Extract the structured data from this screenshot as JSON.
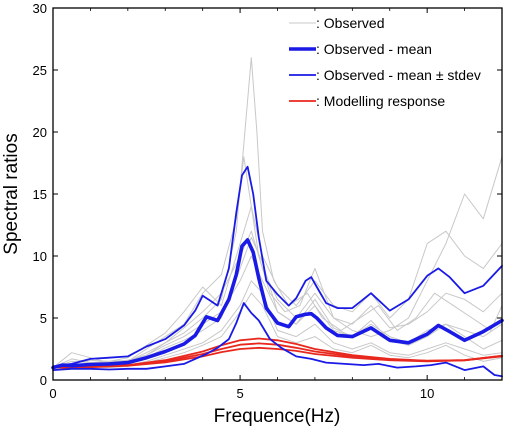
{
  "chart_data": {
    "type": "line",
    "title": "",
    "xlabel": "Frequence(Hz)",
    "ylabel": "Spectral ratios",
    "xlim": [
      0,
      12
    ],
    "ylim": [
      0,
      30
    ],
    "x_ticks": [
      0,
      5,
      10
    ],
    "y_ticks": [
      0,
      5,
      10,
      15,
      20,
      25,
      30
    ],
    "grid": false,
    "legend_position": "top-right",
    "legend": [
      {
        "label": ": Observed",
        "color": "#c8c8c8",
        "style": "thin"
      },
      {
        "label": ": Observed - mean",
        "color": "#1a1ae6",
        "style": "thick"
      },
      {
        "label": ": Observed - mean ± stdev",
        "color": "#1a1ae6",
        "style": "medium"
      },
      {
        "label": ": Modelling response",
        "color": "#e8281e",
        "style": "medium"
      }
    ],
    "series": [
      {
        "name": ": Observed - mean",
        "kind": "mean",
        "color": "#1a1ae6",
        "x": [
          0,
          0.25,
          0.5,
          1,
          1.5,
          2,
          2.5,
          3,
          3.5,
          3.8,
          4.1,
          4.4,
          4.7,
          4.9,
          5.05,
          5.2,
          5.35,
          5.5,
          5.7,
          6,
          6.3,
          6.5,
          6.75,
          6.9,
          7.05,
          7.3,
          7.6,
          8,
          8.5,
          9,
          9.5,
          10,
          10.3,
          10.6,
          11,
          11.5,
          12
        ],
        "y": [
          1,
          1.2,
          1.15,
          1.25,
          1.3,
          1.4,
          1.8,
          2.3,
          2.9,
          3.6,
          5.1,
          4.8,
          6.5,
          8.5,
          10.8,
          11.3,
          10.3,
          8.2,
          5.8,
          4.6,
          4.3,
          5.1,
          5.3,
          5.35,
          5.0,
          4.2,
          3.6,
          3.5,
          4.2,
          3.2,
          3.0,
          3.7,
          4.4,
          3.9,
          3.2,
          3.9,
          4.8
        ]
      },
      {
        "name": ": Observed - mean ± stdev",
        "kind": "upper",
        "color": "#1a1ae6",
        "x": [
          0,
          0.5,
          1,
          1.5,
          2,
          2.5,
          3,
          3.5,
          3.8,
          4.0,
          4.2,
          4.4,
          4.7,
          4.9,
          5.05,
          5.2,
          5.35,
          5.5,
          5.7,
          6,
          6.3,
          6.5,
          6.75,
          6.9,
          7.05,
          7.3,
          7.6,
          8,
          8.5,
          9,
          9.5,
          10,
          10.3,
          10.6,
          11,
          11.5,
          12
        ],
        "y": [
          1.1,
          1.3,
          1.7,
          1.8,
          1.9,
          2.7,
          3.3,
          4.4,
          5.6,
          6.8,
          6.4,
          6.0,
          9.0,
          13.5,
          16.5,
          17.2,
          15.0,
          11.5,
          8.0,
          6.9,
          6.0,
          6.6,
          8.0,
          8.3,
          7.5,
          6.2,
          5.8,
          5.8,
          7.0,
          5.6,
          6.5,
          8.4,
          9.0,
          8.3,
          7.0,
          7.6,
          9.2
        ]
      },
      {
        "name": ": Observed - mean ± stdev",
        "kind": "lower",
        "color": "#1a1ae6",
        "x": [
          0,
          0.5,
          1,
          1.5,
          2,
          2.5,
          3,
          3.5,
          3.8,
          4.1,
          4.4,
          4.7,
          4.9,
          5.1,
          5.3,
          5.5,
          5.8,
          6.1,
          6.5,
          6.9,
          7.3,
          7.8,
          8.3,
          8.7,
          9.2,
          9.7,
          10.1,
          10.5,
          11,
          11.5,
          11.8,
          12
        ],
        "y": [
          0.8,
          0.9,
          0.9,
          0.85,
          0.9,
          0.9,
          1.1,
          1.3,
          1.7,
          2.1,
          2.6,
          3.3,
          4.6,
          6.2,
          5.4,
          4.8,
          3.3,
          2.6,
          1.9,
          1.7,
          1.4,
          1.3,
          1.2,
          1.3,
          1.0,
          1.1,
          1.2,
          1.4,
          0.8,
          1.1,
          0.4,
          0.3
        ]
      },
      {
        "name": ": Observed",
        "kind": "observed",
        "color": "#c8c8c8",
        "x": [
          0,
          0.5,
          1,
          1.5,
          2,
          2.5,
          3,
          3.5,
          4,
          4.5,
          4.9,
          5.1,
          5.3,
          5.45,
          5.6,
          5.9,
          6.3,
          6.8,
          7.2,
          7.7,
          8.2,
          8.7,
          9.2,
          9.7,
          10.2,
          10.7,
          11.2,
          11.7,
          12
        ],
        "y": [
          1,
          1.7,
          1.4,
          1.5,
          1.6,
          2.0,
          3.0,
          3.8,
          5.0,
          6.5,
          12,
          19,
          26,
          20,
          12,
          8,
          6,
          7,
          5,
          4,
          5,
          6,
          4,
          5,
          7,
          6,
          5,
          4,
          6
        ]
      },
      {
        "name": ": Observed",
        "kind": "observed",
        "color": "#c8c8c8",
        "x": [
          0,
          0.5,
          1,
          1.5,
          2,
          2.5,
          3,
          3.5,
          4,
          4.5,
          4.9,
          5.1,
          5.3,
          5.5,
          5.8,
          6.2,
          6.6,
          7.0,
          7.5,
          8,
          8.5,
          9,
          9.5,
          10,
          10.5,
          11,
          11.5,
          12
        ],
        "y": [
          1,
          1.2,
          1.3,
          1.2,
          1.5,
          2.5,
          3.5,
          4.5,
          7.0,
          8.5,
          13,
          18,
          14,
          10,
          7,
          5.5,
          6,
          9,
          5,
          4,
          3.5,
          4,
          5,
          8,
          11,
          15,
          13,
          18
        ]
      },
      {
        "name": ": Observed",
        "kind": "observed",
        "color": "#c8c8c8",
        "x": [
          0,
          0.5,
          1,
          1.5,
          2,
          2.5,
          3,
          3.5,
          4,
          4.5,
          5,
          5.3,
          5.6,
          6,
          6.5,
          7,
          7.5,
          8,
          8.5,
          9,
          9.5,
          10,
          10.5,
          11,
          11.5,
          12
        ],
        "y": [
          1,
          2.2,
          1.8,
          1.4,
          1.3,
          1.8,
          2.6,
          3.2,
          4.0,
          5.0,
          9.0,
          11.5,
          9.5,
          5.5,
          4.5,
          6.5,
          4.2,
          3.5,
          4.8,
          3.2,
          2.8,
          3.5,
          4.5,
          3.5,
          2.5,
          3.2
        ]
      },
      {
        "name": ": Observed",
        "kind": "observed",
        "color": "#c8c8c8",
        "x": [
          0,
          0.5,
          1,
          1.5,
          2,
          2.5,
          3,
          3.5,
          4,
          4.5,
          5,
          5.3,
          5.6,
          6,
          6.5,
          7,
          7.5,
          8,
          8.5,
          9,
          9.5,
          10,
          10.5,
          11,
          11.5,
          12
        ],
        "y": [
          1,
          1.0,
          1.1,
          1.2,
          1.2,
          1.5,
          2.0,
          2.5,
          3.0,
          4.0,
          6.0,
          8.0,
          7.0,
          4.0,
          3.5,
          4.5,
          3.0,
          2.5,
          3.0,
          2.2,
          2.0,
          2.5,
          3.0,
          2.5,
          2.0,
          2.2
        ]
      },
      {
        "name": ": Observed",
        "kind": "observed",
        "color": "#c8c8c8",
        "x": [
          0,
          0.5,
          1,
          1.5,
          2,
          2.5,
          3,
          3.5,
          4,
          4.5,
          5,
          5.3,
          5.6,
          6,
          6.5,
          7,
          7.5,
          8,
          8.5,
          9,
          9.5,
          10,
          10.5,
          11,
          11.5,
          12
        ],
        "y": [
          1,
          1.3,
          1.6,
          1.5,
          1.8,
          2.8,
          3.8,
          5.5,
          7.5,
          6.0,
          11,
          14,
          10,
          7.5,
          6.0,
          8.0,
          6.0,
          5.5,
          7.0,
          5.0,
          6.5,
          11,
          12,
          10,
          9.0,
          11
        ]
      },
      {
        "name": ": Observed",
        "kind": "observed",
        "color": "#c8c8c8",
        "x": [
          0,
          0.5,
          1,
          1.5,
          2,
          2.5,
          3,
          3.5,
          4,
          4.5,
          5,
          5.3,
          5.6,
          6,
          6.5,
          7,
          7.5,
          8,
          8.5,
          9,
          9.5,
          10,
          10.5,
          11,
          11.5,
          12
        ],
        "y": [
          1,
          0.9,
          1.0,
          1.0,
          1.1,
          1.4,
          1.8,
          2.2,
          2.8,
          3.5,
          5.5,
          7.0,
          6.0,
          3.5,
          3.0,
          3.5,
          2.5,
          2.2,
          2.8,
          2.0,
          1.8,
          2.2,
          2.8,
          2.0,
          1.5,
          1.8
        ]
      },
      {
        "name": ": Observed",
        "kind": "observed",
        "color": "#c8c8c8",
        "x": [
          0,
          0.5,
          1,
          1.5,
          2,
          2.5,
          3,
          3.5,
          4,
          4.5,
          5,
          5.3,
          5.6,
          6,
          6.5,
          7,
          7.5,
          8,
          8.5,
          9,
          9.5,
          10,
          10.5,
          11,
          11.5,
          12
        ],
        "y": [
          1,
          1.5,
          1.4,
          1.3,
          1.5,
          2.2,
          3.0,
          4.2,
          5.5,
          7.0,
          10,
          12,
          9.0,
          6.5,
          5.0,
          7.0,
          5.0,
          4.5,
          6.0,
          4.2,
          4.5,
          5.5,
          7.0,
          6.5,
          5.5,
          7.0
        ]
      },
      {
        "name": ": Observed",
        "kind": "observed",
        "color": "#c8c8c8",
        "x": [
          0,
          0.5,
          1,
          1.5,
          2,
          2.5,
          3,
          3.5,
          4,
          4.5,
          5,
          5.3,
          5.6,
          6,
          6.5,
          7,
          7.5,
          8,
          8.5,
          9,
          9.5,
          10,
          10.5,
          11,
          11.5,
          12
        ],
        "y": [
          1,
          1.1,
          1.2,
          1.4,
          1.6,
          2.0,
          2.8,
          3.5,
          4.5,
          5.5,
          8.0,
          10,
          8.0,
          5.5,
          4.5,
          6.0,
          4.0,
          3.5,
          4.5,
          3.5,
          3.0,
          4.0,
          4.5,
          4.0,
          3.5,
          4.5
        ]
      },
      {
        "name": ": Modelling response",
        "kind": "model",
        "color": "#e8281e",
        "x": [
          0,
          1,
          2,
          3,
          4,
          4.5,
          5,
          5.5,
          6,
          6.5,
          7,
          8,
          9,
          10,
          11,
          12
        ],
        "y": [
          1,
          1.05,
          1.2,
          1.6,
          2.3,
          2.8,
          3.2,
          3.35,
          3.2,
          2.9,
          2.5,
          2.0,
          1.7,
          1.55,
          1.6,
          1.95
        ]
      },
      {
        "name": ": Modelling response",
        "kind": "model",
        "color": "#e8281e",
        "x": [
          0,
          1,
          2,
          3,
          4,
          4.5,
          5,
          5.5,
          6,
          6.5,
          7,
          8,
          9,
          10,
          11,
          12
        ],
        "y": [
          1,
          1.05,
          1.18,
          1.5,
          2.1,
          2.5,
          2.85,
          2.95,
          2.85,
          2.6,
          2.3,
          1.9,
          1.65,
          1.55,
          1.6,
          1.95
        ]
      },
      {
        "name": ": Modelling response",
        "kind": "model",
        "color": "#e8281e",
        "x": [
          0,
          1,
          2,
          3,
          4,
          4.5,
          5,
          5.5,
          6,
          6.5,
          7,
          8,
          9,
          10,
          11,
          12
        ],
        "y": [
          1,
          1.04,
          1.15,
          1.42,
          1.9,
          2.25,
          2.5,
          2.6,
          2.5,
          2.35,
          2.1,
          1.8,
          1.6,
          1.5,
          1.58,
          1.9
        ]
      }
    ]
  }
}
